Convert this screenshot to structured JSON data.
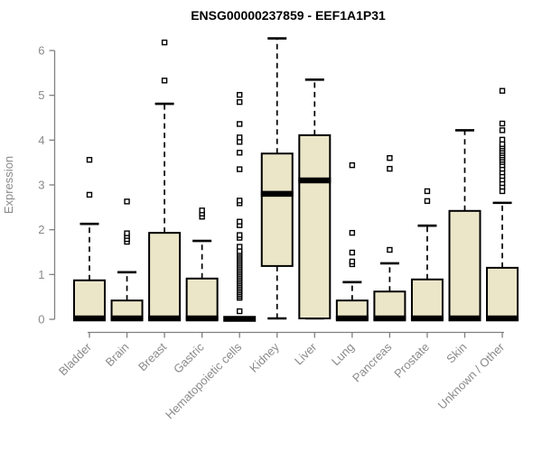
{
  "chart_data": {
    "type": "boxplot",
    "title": "ENSG00000237859 - EEF1A1P31",
    "xlabel": "",
    "ylabel": "Expression",
    "ylim": [
      0,
      6.4
    ],
    "yticks": [
      0,
      1,
      2,
      3,
      4,
      5,
      6
    ],
    "grid": false,
    "legend": "none",
    "categories": [
      "Bladder",
      "Brain",
      "Breast",
      "Gastric",
      "Hematopoietic cells",
      "Kidney",
      "Liver",
      "Lung",
      "Pancreas",
      "Prostate",
      "Skin",
      "Unknown / Other"
    ],
    "series": [
      {
        "category": "Bladder",
        "q1": 0,
        "median": 0.02,
        "q3": 0.87,
        "whisker_low": 0,
        "whisker_high": 2.13,
        "outliers": [
          2.78,
          3.56
        ]
      },
      {
        "category": "Brain",
        "q1": 0,
        "median": 0.02,
        "q3": 0.42,
        "whisker_low": 0,
        "whisker_high": 1.05,
        "outliers": [
          1.73,
          1.79,
          1.86,
          1.92,
          2.63
        ]
      },
      {
        "category": "Breast",
        "q1": 0,
        "median": 0.02,
        "q3": 1.93,
        "whisker_low": 0,
        "whisker_high": 4.81,
        "outliers": [
          5.33,
          6.18
        ]
      },
      {
        "category": "Gastric",
        "q1": 0,
        "median": 0.02,
        "q3": 0.91,
        "whisker_low": 0,
        "whisker_high": 1.75,
        "outliers": [
          2.29,
          2.36,
          2.43
        ]
      },
      {
        "category": "Hematopoietic cells",
        "q1": 0,
        "median": 0.01,
        "q3": 0.03,
        "whisker_low": 0,
        "whisker_high": 0.04,
        "outliers": [
          0.18,
          0.48,
          0.52,
          0.56,
          0.6,
          0.64,
          0.68,
          0.72,
          0.76,
          0.8,
          0.84,
          0.88,
          0.92,
          0.96,
          1.0,
          1.04,
          1.08,
          1.12,
          1.16,
          1.2,
          1.24,
          1.28,
          1.32,
          1.36,
          1.4,
          1.44,
          1.48,
          1.52,
          1.62,
          1.82,
          1.88,
          2.1,
          2.18,
          2.59,
          2.65,
          3.35,
          3.72,
          3.96,
          4.06,
          4.36,
          4.85,
          5.01
        ]
      },
      {
        "category": "Kidney",
        "q1": 1.19,
        "median": 2.8,
        "q3": 3.7,
        "whisker_low": 0.02,
        "whisker_high": 6.27,
        "outliers": []
      },
      {
        "category": "Liver",
        "q1": 0.02,
        "median": 3.1,
        "q3": 4.11,
        "whisker_low": 0.02,
        "whisker_high": 5.35,
        "outliers": []
      },
      {
        "category": "Lung",
        "q1": 0,
        "median": 0.02,
        "q3": 0.42,
        "whisker_low": 0,
        "whisker_high": 0.83,
        "outliers": [
          1.23,
          1.29,
          1.49,
          1.93,
          3.44
        ]
      },
      {
        "category": "Pancreas",
        "q1": 0,
        "median": 0.02,
        "q3": 0.62,
        "whisker_low": 0,
        "whisker_high": 1.25,
        "outliers": [
          1.55,
          3.36,
          3.6
        ]
      },
      {
        "category": "Prostate",
        "q1": 0,
        "median": 0.02,
        "q3": 0.89,
        "whisker_low": 0,
        "whisker_high": 2.09,
        "outliers": [
          2.64,
          2.86
        ]
      },
      {
        "category": "Skin",
        "q1": 0,
        "median": 0.02,
        "q3": 2.42,
        "whisker_low": 0,
        "whisker_high": 4.22,
        "outliers": []
      },
      {
        "category": "Unknown / Other",
        "q1": 0,
        "median": 0.02,
        "q3": 1.15,
        "whisker_low": 0,
        "whisker_high": 2.6,
        "outliers": [
          2.86,
          2.96,
          3.04,
          3.12,
          3.2,
          3.28,
          3.36,
          3.44,
          3.51,
          3.56,
          3.61,
          3.66,
          3.71,
          3.76,
          3.81,
          3.86,
          3.91,
          4.01,
          4.22,
          4.37,
          5.1
        ]
      }
    ],
    "colors": {
      "box_fill": "#ECE6C9",
      "box_border": "#000000",
      "median": "#000000",
      "whisker": "#000000",
      "outlier_fill": "#FFFFFF",
      "outlier_border": "#000000",
      "axis_line": "#808080",
      "tick_label": "#8A8A8A",
      "title": "#000000"
    }
  }
}
